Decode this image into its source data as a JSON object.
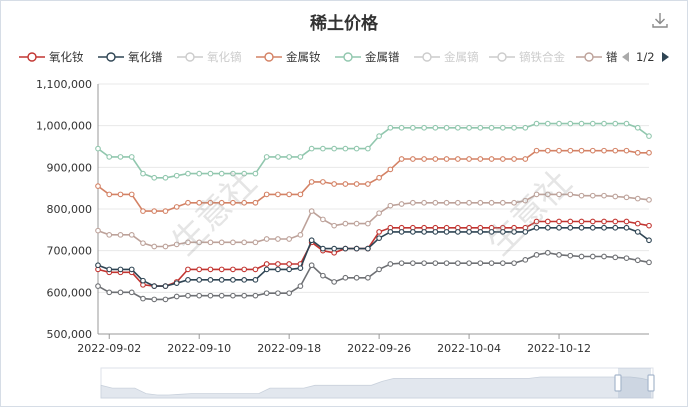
{
  "title": "稀土价格",
  "watermark": "生意社",
  "pager": {
    "text": "1/2"
  },
  "colors": {
    "background": "#ffffff",
    "axis": "#999999",
    "grid": "#e8e8e8",
    "zoom_fill": "#e2e7ee",
    "zoom_handle": "#a7b7cc"
  },
  "icons": {
    "download": "download-icon",
    "prev": "triangle-left-icon",
    "next": "triangle-right-icon"
  },
  "chart_data": {
    "type": "line",
    "title": "稀土价格",
    "ylim": [
      500000,
      1100000
    ],
    "yticks": [
      500000,
      600000,
      700000,
      800000,
      900000,
      1000000,
      1100000
    ],
    "ytick_labels": [
      "500,000",
      "600,000",
      "700,000",
      "800,000",
      "900,000",
      "1,000,000",
      "1,100,000"
    ],
    "x_start": "2022-09-01",
    "x_end": "2022-10-20",
    "xticks": [
      "2022-09-02",
      "2022-09-10",
      "2022-09-18",
      "2022-09-26",
      "2022-10-04",
      "2022-10-12"
    ],
    "grid": true,
    "legend_position": "top",
    "series": [
      {
        "name": "氧化钕",
        "color": "#c23531",
        "visible": true,
        "values": [
          655000,
          648000,
          648000,
          648000,
          618000,
          615000,
          615000,
          625000,
          655000,
          655000,
          655000,
          655000,
          655000,
          655000,
          655000,
          668000,
          668000,
          668000,
          668000,
          720000,
          700000,
          695000,
          705000,
          705000,
          705000,
          745000,
          755000,
          755000,
          755000,
          755000,
          755000,
          755000,
          755000,
          755000,
          755000,
          755000,
          755000,
          755000,
          755000,
          770000,
          770000,
          770000,
          770000,
          770000,
          770000,
          770000,
          770000,
          770000,
          765000,
          760000
        ]
      },
      {
        "name": "氧化镨",
        "color": "#2f4554",
        "visible": true,
        "values": [
          665000,
          655000,
          655000,
          655000,
          628000,
          615000,
          615000,
          622000,
          630000,
          630000,
          630000,
          630000,
          630000,
          630000,
          630000,
          655000,
          655000,
          655000,
          658000,
          725000,
          705000,
          705000,
          705000,
          705000,
          705000,
          730000,
          745000,
          745000,
          745000,
          745000,
          745000,
          745000,
          745000,
          745000,
          745000,
          745000,
          745000,
          745000,
          745000,
          755000,
          755000,
          755000,
          755000,
          755000,
          755000,
          755000,
          755000,
          755000,
          745000,
          725000
        ]
      },
      {
        "name": "氧化镝",
        "color": "#cccccc",
        "visible": false,
        "values": []
      },
      {
        "name": "金属钕",
        "color": "#d48265",
        "visible": true,
        "values": [
          855000,
          835000,
          835000,
          835000,
          795000,
          795000,
          795000,
          805000,
          815000,
          815000,
          815000,
          815000,
          815000,
          815000,
          815000,
          835000,
          835000,
          835000,
          835000,
          865000,
          865000,
          860000,
          860000,
          860000,
          860000,
          875000,
          895000,
          920000,
          920000,
          920000,
          920000,
          920000,
          920000,
          920000,
          920000,
          920000,
          920000,
          920000,
          920000,
          940000,
          940000,
          940000,
          940000,
          940000,
          940000,
          940000,
          940000,
          940000,
          935000,
          935000
        ]
      },
      {
        "name": "金属镨",
        "color": "#91c7ae",
        "visible": true,
        "values": [
          945000,
          925000,
          925000,
          925000,
          885000,
          875000,
          875000,
          880000,
          885000,
          885000,
          885000,
          885000,
          885000,
          885000,
          885000,
          925000,
          925000,
          925000,
          925000,
          945000,
          945000,
          945000,
          945000,
          945000,
          945000,
          975000,
          995000,
          995000,
          995000,
          995000,
          995000,
          995000,
          995000,
          995000,
          995000,
          995000,
          995000,
          995000,
          995000,
          1005000,
          1005000,
          1005000,
          1005000,
          1005000,
          1005000,
          1005000,
          1005000,
          1005000,
          995000,
          975000
        ]
      },
      {
        "name": "金属镝",
        "color": "#cccccc",
        "visible": false,
        "values": []
      },
      {
        "name": "镝铁合金",
        "color": "#cccccc",
        "visible": false,
        "values": []
      },
      {
        "name": "镨",
        "color": "#bda29a",
        "visible": true,
        "values": [
          748000,
          738000,
          738000,
          738000,
          718000,
          710000,
          710000,
          715000,
          720000,
          720000,
          720000,
          720000,
          720000,
          720000,
          720000,
          728000,
          728000,
          728000,
          738000,
          795000,
          775000,
          760000,
          765000,
          765000,
          765000,
          790000,
          808000,
          812000,
          815000,
          815000,
          815000,
          815000,
          815000,
          815000,
          815000,
          815000,
          815000,
          815000,
          820000,
          835000,
          835000,
          835000,
          835000,
          832000,
          832000,
          832000,
          830000,
          828000,
          825000,
          822000
        ]
      },
      {
        "name": "",
        "color": "#6e7074",
        "visible": true,
        "values": [
          615000,
          600000,
          600000,
          600000,
          585000,
          583000,
          583000,
          590000,
          592000,
          592000,
          592000,
          592000,
          592000,
          592000,
          592000,
          598000,
          598000,
          598000,
          615000,
          665000,
          640000,
          625000,
          635000,
          635000,
          635000,
          655000,
          668000,
          670000,
          670000,
          670000,
          670000,
          670000,
          670000,
          670000,
          670000,
          670000,
          670000,
          670000,
          678000,
          690000,
          695000,
          690000,
          688000,
          686000,
          686000,
          686000,
          684000,
          682000,
          677000,
          672000
        ]
      }
    ]
  }
}
